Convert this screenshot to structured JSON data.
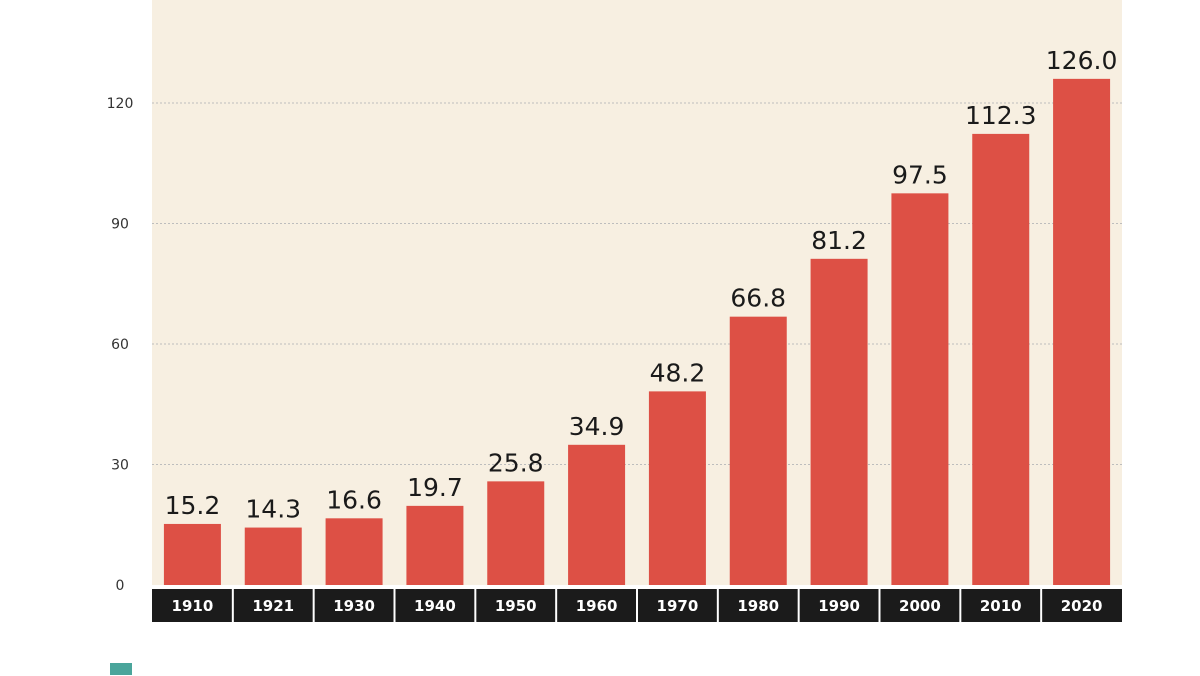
{
  "colors": {
    "bar": "#dd5045",
    "plot_background": "#f7efe1",
    "category_band": "#1b1b1b",
    "gridline": "#bdbdbd",
    "legend_swatch": "#4aa59b"
  },
  "chart_data": {
    "type": "bar",
    "title": "",
    "xlabel": "",
    "ylabel": "",
    "categories": [
      "1910",
      "1921",
      "1930",
      "1940",
      "1950",
      "1960",
      "1970",
      "1980",
      "1990",
      "2000",
      "2010",
      "2020"
    ],
    "values": [
      15.2,
      14.3,
      16.6,
      19.7,
      25.8,
      34.9,
      48.2,
      66.8,
      81.2,
      97.5,
      112.3,
      126.0
    ],
    "value_labels": [
      "15.2",
      "14.3",
      "16.6",
      "19.7",
      "25.8",
      "34.9",
      "48.2",
      "66.8",
      "81.2",
      "97.5",
      "112.3",
      "126.0"
    ],
    "y_ticks": [
      0,
      30,
      60,
      90,
      120
    ],
    "y_tick_labels": [
      "0",
      "30",
      "60",
      "90",
      "120"
    ],
    "ylim": [
      0,
      145
    ],
    "grid": true,
    "legend_placement": "bottom-left"
  }
}
